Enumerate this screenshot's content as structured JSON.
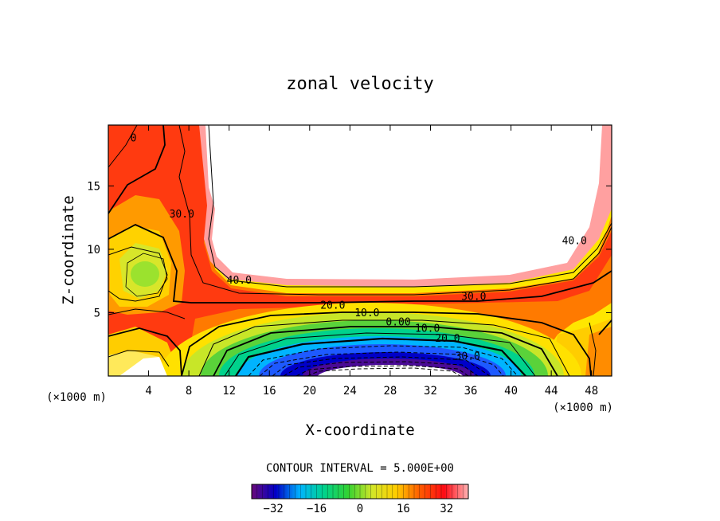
{
  "chart_data": {
    "type": "contour",
    "title": "zonal velocity",
    "xlabel": "X-coordinate",
    "ylabel": "Z-coordinate",
    "x_unit_label": "(×1000 m)",
    "z_unit_label": "(×1000 m)",
    "xlim": [
      0,
      50
    ],
    "ylim": [
      0,
      19.8
    ],
    "x_ticks": [
      4,
      8,
      12,
      16,
      20,
      24,
      28,
      32,
      36,
      40,
      44,
      48
    ],
    "y_ticks": [
      5,
      10,
      15
    ],
    "contour_interval_text": "CONTOUR INTERVAL = 5.000E+00",
    "contour_interval": 5.0,
    "contour_labels": [
      {
        "text": "0",
        "x": 2.5,
        "z": 18.5
      },
      {
        "text": "30.0",
        "x": 7.3,
        "z": 12.5
      },
      {
        "text": "40.0",
        "x": 13.0,
        "z": 7.3
      },
      {
        "text": "20.0",
        "x": 22.3,
        "z": 5.3
      },
      {
        "text": "10.0",
        "x": 25.7,
        "z": 4.7
      },
      {
        "text": "0.00",
        "x": 28.8,
        "z": 4.0
      },
      {
        "text": "10.0",
        "x": 31.7,
        "z": 3.5
      },
      {
        "text": "20.0",
        "x": 33.7,
        "z": 2.7
      },
      {
        "text": "30.0",
        "x": 35.7,
        "z": 1.3
      },
      {
        "text": "30.0",
        "x": 36.3,
        "z": 6.0
      },
      {
        "text": "40.0",
        "x": 46.3,
        "z": 10.4
      }
    ],
    "features": [
      {
        "name": "upper jet core (values above 40, white region)",
        "x_range": [
          10,
          49
        ],
        "z_range": [
          6.5,
          19.8
        ]
      },
      {
        "name": "surface easterly core (values below -32, white region)",
        "x_range": [
          20,
          36
        ],
        "z_range": [
          0,
          1.5
        ]
      },
      {
        "name": "local minimum near left boundary",
        "x": 4,
        "z": 8,
        "value": 15
      }
    ]
  },
  "colorbar": {
    "vmin": -40,
    "vmax": 40,
    "tick_values": [
      -32,
      -16,
      0,
      16,
      32
    ],
    "tick_labels": [
      "−32",
      "−16",
      "0",
      "16",
      "32"
    ],
    "colors": [
      "#6a0a7a",
      "#0000c8",
      "#00b4ff",
      "#00d28c",
      "#32d232",
      "#d2e628",
      "#ffcd00",
      "#ff5a00",
      "#ff0a14",
      "#ffb4b4"
    ]
  }
}
